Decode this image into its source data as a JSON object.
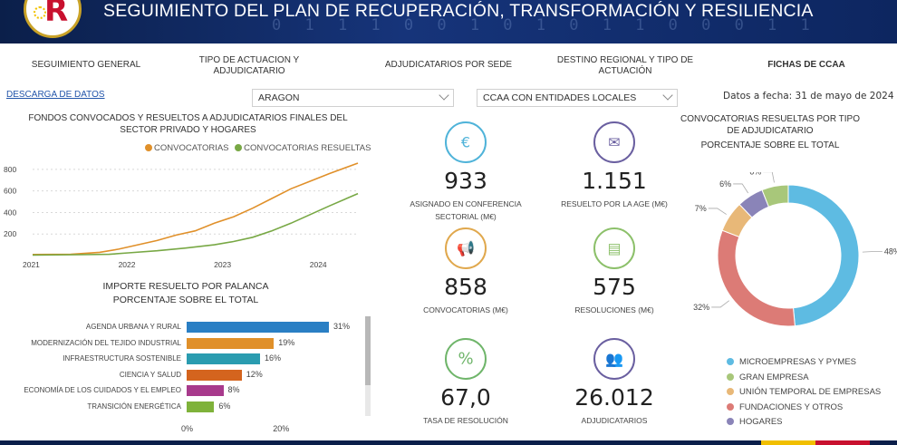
{
  "header": {
    "title": "SEGUIMIENTO DEL PLAN DE RECUPERACIÓN, TRANSFORMACIÓN Y RESILIENCIA",
    "binary_decoration": "0 1 1 1 0 0 1 0   1 0 1 1   0 0 0 1 1",
    "logo_letter": "R"
  },
  "nav": {
    "seguimiento": "SEGUIMIENTO GENERAL",
    "tipo_line1": "TIPO DE ACTUACION Y",
    "tipo_line2": "ADJUDICATARIO",
    "sede": "ADJUDICATARIOS POR SEDE",
    "destino_line1": "DESTINO REGIONAL Y TIPO DE",
    "destino_line2": "ACTUACIÓN",
    "fichas": "FICHAS DE CCAA"
  },
  "download_label": "DESCARGA DE DATOS",
  "filters": {
    "region": "ARAGON",
    "scope": "CCAA CON ENTIDADES LOCALES"
  },
  "date_label": "Datos a fecha: 31 de mayo de 2024",
  "line_section": {
    "title_line1": "FONDOS CONVOCADOS Y RESUELTOS A ADJUDICATARIOS FINALES DEL",
    "title_line2": "SECTOR PRIVADO Y HOGARES",
    "legend": [
      "CONVOCATORIAS",
      "CONVOCATORIAS RESUELTAS"
    ]
  },
  "bar_section": {
    "title_line1": "IMPORTE RESUELTO POR PALANCA",
    "title_line2": "PORCENTAJE SOBRE EL TOTAL"
  },
  "donut_section": {
    "title_line1": "CONVOCATORIAS RESUELTAS POR TIPO",
    "title_line2": "DE ADJUDICATARIO",
    "title_line3": "PORCENTAJE SOBRE EL TOTAL"
  },
  "kpis": [
    {
      "value": "933",
      "label_line1": "ASIGNADO EN CONFERENCIA",
      "label_line2": "SECTORIAL (M€)",
      "icon": "coins-icon",
      "color": "#4fb3d9"
    },
    {
      "value": "1.151",
      "label_line1": "RESUELTO POR LA AGE (M€)",
      "label_line2": "",
      "icon": "document-seal-icon",
      "color": "#6a5fa0"
    },
    {
      "value": "858",
      "label_line1": "CONVOCATORIAS (M€)",
      "label_line2": "",
      "icon": "megaphone-icon",
      "color": "#e0a84d"
    },
    {
      "value": "575",
      "label_line1": "RESOLUCIONES (M€)",
      "label_line2": "",
      "icon": "certificate-icon",
      "color": "#8cc06a"
    },
    {
      "value": "67,0",
      "label_line1": "TASA DE RESOLUCIÓN",
      "label_line2": "",
      "icon": "percent-icon",
      "color": "#6fb56a"
    },
    {
      "value": "26.012",
      "label_line1": "ADJUDICATARIOS",
      "label_line2": "",
      "icon": "people-icon",
      "color": "#6a5fa0"
    }
  ],
  "colors": {
    "header_bg": "#0b1f4a",
    "convocatorias": "#e0902a",
    "resueltas": "#78a845"
  },
  "chart_data": [
    {
      "type": "line",
      "x_ticks": [
        "2021",
        "2022",
        "2023",
        "2024"
      ],
      "y_ticks": [
        "200",
        "400",
        "600",
        "800"
      ],
      "ylim": [
        0,
        900
      ],
      "xlim": [
        2021.0,
        2024.4
      ],
      "grid": true,
      "legend_position": "top-right",
      "series": [
        {
          "name": "CONVOCATORIAS",
          "color": "#e0902a",
          "points": [
            [
              2021.0,
              10
            ],
            [
              2021.4,
              12
            ],
            [
              2021.7,
              30
            ],
            [
              2021.9,
              60
            ],
            [
              2022.1,
              100
            ],
            [
              2022.3,
              140
            ],
            [
              2022.5,
              190
            ],
            [
              2022.7,
              230
            ],
            [
              2022.9,
              300
            ],
            [
              2023.1,
              360
            ],
            [
              2023.3,
              440
            ],
            [
              2023.5,
              530
            ],
            [
              2023.7,
              620
            ],
            [
              2023.9,
              690
            ],
            [
              2024.1,
              760
            ],
            [
              2024.4,
              858
            ]
          ]
        },
        {
          "name": "CONVOCATORIAS RESUELTAS",
          "color": "#78a845",
          "points": [
            [
              2021.0,
              5
            ],
            [
              2021.5,
              8
            ],
            [
              2021.8,
              12
            ],
            [
              2022.0,
              25
            ],
            [
              2022.3,
              45
            ],
            [
              2022.6,
              70
            ],
            [
              2022.9,
              100
            ],
            [
              2023.1,
              130
            ],
            [
              2023.3,
              170
            ],
            [
              2023.5,
              230
            ],
            [
              2023.7,
              300
            ],
            [
              2023.9,
              380
            ],
            [
              2024.1,
              460
            ],
            [
              2024.4,
              575
            ]
          ]
        }
      ]
    },
    {
      "type": "bar",
      "orientation": "horizontal",
      "categories": [
        "AGENDA URBANA Y RURAL",
        "MODERNIZACIÓN DEL TEJIDO INDUSTRIAL",
        "INFRAESTRUCTURA SOSTENIBLE",
        "CIENCIA Y SALUD",
        "ECONOMÍA DE LOS CUIDADOS Y EL EMPLEO",
        "TRANSICIÓN ENERGÉTICA"
      ],
      "values": [
        31,
        19,
        16,
        12,
        8,
        6
      ],
      "value_labels": [
        "31%",
        "19%",
        "16%",
        "12%",
        "8%",
        "6%"
      ],
      "colors": [
        "#2a7fc4",
        "#e0902a",
        "#2a9cb0",
        "#d4641e",
        "#a83a8c",
        "#7fb23a"
      ],
      "x_ticks": [
        "0%",
        "20%"
      ],
      "xlim": [
        0,
        31
      ]
    },
    {
      "type": "pie",
      "donut": true,
      "categories": [
        "MICROEMPRESAS Y PYMES",
        "GRAN EMPRESA",
        "UNIÓN TEMPORAL DE EMPRESAS",
        "FUNDACIONES Y OTROS",
        "HOGARES"
      ],
      "values": [
        48,
        6,
        7,
        32,
        6
      ],
      "label_order": [
        "MICROEMPRESAS Y PYMES",
        "FUNDACIONES Y OTROS",
        "UNIÓN TEMPORAL DE EMPRESAS",
        "HOGARES",
        "GRAN EMPRESA"
      ],
      "value_labels": [
        "48%",
        "6%",
        "7%",
        "32%",
        "6%"
      ],
      "colors": [
        "#5ebbe2",
        "#a8c77a",
        "#e8b878",
        "#dc7b76",
        "#8a84b8"
      ],
      "legend_position": "bottom"
    }
  ]
}
